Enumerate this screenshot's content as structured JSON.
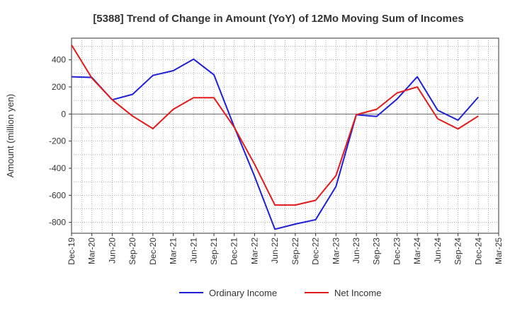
{
  "chart_data": {
    "type": "line",
    "title": "[5388]  Trend of Change in Amount (YoY) of 12Mo Moving Sum of Incomes",
    "ylabel": "Amount (million yen)",
    "xlabel": "",
    "ylim": [
      -880,
      560
    ],
    "yticks": [
      400,
      200,
      0,
      -200,
      -400,
      -600,
      -800
    ],
    "ytick_labels": [
      "400",
      "200",
      "0",
      "-200",
      "-400",
      "-600",
      "-800"
    ],
    "x": [
      "Dec-19",
      "Mar-20",
      "Jun-20",
      "Sep-20",
      "Dec-20",
      "Mar-21",
      "Jun-21",
      "Sep-21",
      "Dec-21",
      "Mar-22",
      "Jun-22",
      "Sep-22",
      "Dec-22",
      "Mar-23",
      "Jun-23",
      "Sep-23",
      "Dec-23",
      "Mar-24",
      "Jun-24",
      "Sep-24",
      "Dec-24",
      "Mar-25"
    ],
    "grid": true,
    "legend_position": "bottom",
    "series": [
      {
        "name": "Ordinary Income",
        "color": "#1f1fd6",
        "values": [
          275,
          270,
          105,
          145,
          285,
          320,
          405,
          290,
          -95,
          -460,
          -850,
          -812,
          -780,
          -535,
          -5,
          -18,
          110,
          275,
          28,
          -45,
          125,
          null
        ]
      },
      {
        "name": "Net Income",
        "color": "#e31a1c",
        "values": [
          510,
          265,
          105,
          -15,
          -108,
          35,
          120,
          120,
          -98,
          -370,
          -672,
          -672,
          -637,
          -455,
          -5,
          35,
          155,
          200,
          -35,
          -110,
          -15,
          null
        ]
      }
    ]
  }
}
